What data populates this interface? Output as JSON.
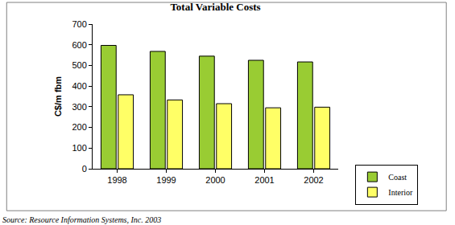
{
  "chart_data": {
    "type": "bar",
    "title": "Total Variable Costs",
    "y_label": "C$/m fbm",
    "categories": [
      "1998",
      "1999",
      "2000",
      "2001",
      "2002"
    ],
    "series": [
      {
        "name": "Coast",
        "color": "#99cc33",
        "values": [
          597,
          568,
          545,
          525,
          517
        ]
      },
      {
        "name": "Interior",
        "color": "#ffff66",
        "values": [
          358,
          333,
          315,
          295,
          298
        ]
      }
    ],
    "ylim": [
      0,
      700
    ],
    "yticks": [
      0,
      100,
      200,
      300,
      400,
      500,
      600,
      700
    ],
    "grid": false,
    "legend": "right",
    "annotations": [
      "Source: Resource Information Systems, Inc. 2003"
    ]
  }
}
